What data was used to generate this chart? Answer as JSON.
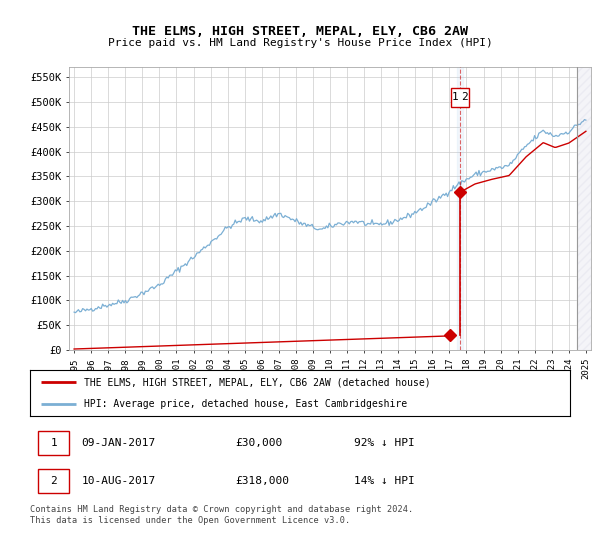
{
  "title": "THE ELMS, HIGH STREET, MEPAL, ELY, CB6 2AW",
  "subtitle": "Price paid vs. HM Land Registry's House Price Index (HPI)",
  "hpi_color": "#7bafd4",
  "price_color": "#cc0000",
  "background_color": "#ffffff",
  "grid_color": "#cccccc",
  "ylim": [
    0,
    570000
  ],
  "yticks": [
    0,
    50000,
    100000,
    150000,
    200000,
    250000,
    300000,
    350000,
    400000,
    450000,
    500000,
    550000
  ],
  "ytick_labels": [
    "£0",
    "£50K",
    "£100K",
    "£150K",
    "£200K",
    "£250K",
    "£300K",
    "£350K",
    "£400K",
    "£450K",
    "£500K",
    "£550K"
  ],
  "legend_label_price": "THE ELMS, HIGH STREET, MEPAL, ELY, CB6 2AW (detached house)",
  "legend_label_hpi": "HPI: Average price, detached house, East Cambridgeshire",
  "note1_num": "1",
  "note1_date": "09-JAN-2017",
  "note1_price": "£30,000",
  "note1_hpi": "92% ↓ HPI",
  "note2_num": "2",
  "note2_date": "10-AUG-2017",
  "note2_price": "£318,000",
  "note2_hpi": "14% ↓ HPI",
  "footer": "Contains HM Land Registry data © Crown copyright and database right 2024.\nThis data is licensed under the Open Government Licence v3.0.",
  "transaction1_date": 2017.03,
  "transaction1_price": 30000,
  "transaction2_date": 2017.62,
  "transaction2_price": 318000,
  "hatch_start": 2024.5,
  "xmin": 1994.7,
  "xmax": 2025.3
}
